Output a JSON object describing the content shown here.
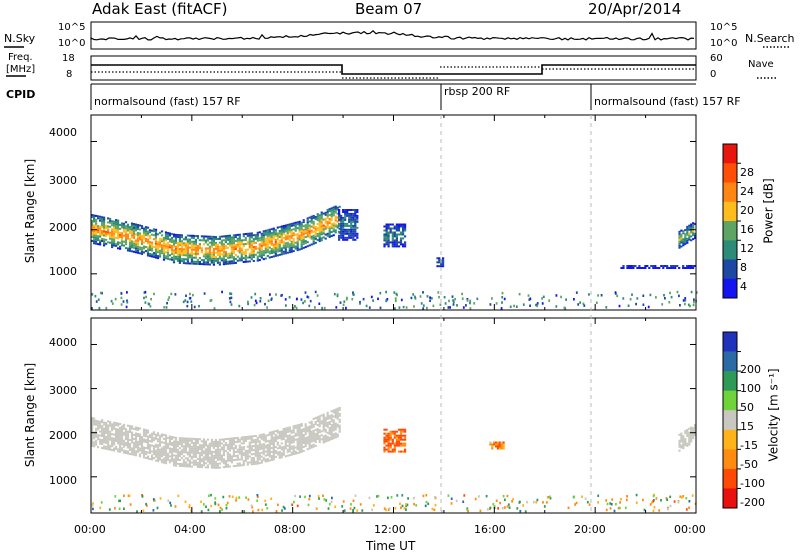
{
  "header": {
    "radar": "Adak East (fitACF)",
    "beam": "Beam 07",
    "date": "20/Apr/2014"
  },
  "noise_panel": {
    "left_label": "N.Sky",
    "right_label": "N.Search",
    "left_ticks": [
      "10^5",
      "10^0"
    ],
    "right_ticks": [
      "10^5",
      "10^0"
    ]
  },
  "freq_panel": {
    "left_label_top": "Freq.",
    "left_label_bottom": "[MHz]",
    "right_label": "Nave",
    "left_ticks": [
      "18",
      "8"
    ],
    "right_ticks": [
      "60",
      "0"
    ]
  },
  "cpid_panel": {
    "label": "CPID",
    "segments": [
      {
        "name": "normalsound (fast) 157 RF",
        "start_hour": 0,
        "end_hour": 14
      },
      {
        "name": "rbsp 200 RF",
        "start_hour": 14,
        "end_hour": 20
      },
      {
        "name": "normalsound (fast) 157 RF",
        "start_hour": 20,
        "end_hour": 24
      }
    ]
  },
  "power_colorbar": {
    "title": "Power [dB]",
    "ticks": [
      "28",
      "24",
      "20",
      "16",
      "12",
      "8",
      "4"
    ],
    "colors": [
      "#e8170e",
      "#ff4f06",
      "#ff8515",
      "#ffbc1d",
      "#5ea565",
      "#2d8c78",
      "#1c47a3",
      "#1414f0"
    ]
  },
  "velocity_colorbar": {
    "title": "Velocity [m s⁻¹]",
    "ticks": [
      "200",
      "100",
      "50",
      "15",
      "-15",
      "-50",
      "-100",
      "-200"
    ],
    "colors": [
      "#2233bb",
      "#2a6ba6",
      "#2e9a57",
      "#6fd43a",
      "#c8c8c0",
      "#ffb21a",
      "#ff8c10",
      "#ff4a05",
      "#e8110e"
    ]
  },
  "xaxis": {
    "title": "Time UT",
    "ticks": [
      "00:00",
      "04:00",
      "08:00",
      "12:00",
      "16:00",
      "20:00",
      "00:00"
    ]
  },
  "chart_data": {
    "type": "heatmap",
    "x_range_hours": [
      0,
      24
    ],
    "y_label": "Slant Range [km]",
    "y_ticks": [
      1000,
      2000,
      3000,
      4000
    ],
    "ylim": [
      180,
      4600
    ],
    "panels": [
      {
        "name": "power",
        "colorbar_range_db": [
          0,
          32
        ],
        "regions": [
          {
            "start_hour": 0.0,
            "end_hour": 9.9,
            "center_km": [
              2000,
              1800,
              1550,
              1500,
              1600,
              1850,
              2250
            ],
            "half_width_km": 320,
            "core_db": 22
          },
          {
            "start_hour": 9.8,
            "end_hour": 10.6,
            "center_km": [
              2100
            ],
            "half_width_km": 350,
            "core_db": 9
          },
          {
            "start_hour": 11.6,
            "end_hour": 12.5,
            "center_km": [
              1850
            ],
            "half_width_km": 250,
            "core_db": 10
          },
          {
            "start_hour": 13.7,
            "end_hour": 14.0,
            "center_km": [
              1250
            ],
            "half_width_km": 100,
            "core_db": 10
          },
          {
            "start_hour": 21.0,
            "end_hour": 24.0,
            "center_km": [
              1150,
              1150
            ],
            "half_width_km": 40,
            "core_db": 4
          },
          {
            "start_hour": 23.3,
            "end_hour": 24.0,
            "center_km": [
              1750,
              2000
            ],
            "half_width_km": 180,
            "core_db": 16
          }
        ]
      },
      {
        "name": "velocity",
        "colorbar_range_ms": [
          -250,
          250
        ],
        "regions": [
          {
            "start_hour": 0.0,
            "end_hour": 9.9,
            "center_km": [
              2000,
              1800,
              1550,
              1500,
              1600,
              1850,
              2250
            ],
            "half_width_km": 320,
            "core_ms": 0
          },
          {
            "start_hour": 11.6,
            "end_hour": 12.5,
            "center_km": [
              1800
            ],
            "half_width_km": 250,
            "core_ms": -120
          },
          {
            "start_hour": 15.8,
            "end_hour": 16.4,
            "center_km": [
              1700
            ],
            "half_width_km": 80,
            "core_ms": -80
          },
          {
            "start_hour": 23.3,
            "end_hour": 24.0,
            "center_km": [
              1750,
              2000
            ],
            "half_width_km": 180,
            "core_ms": 0
          }
        ]
      }
    ]
  }
}
